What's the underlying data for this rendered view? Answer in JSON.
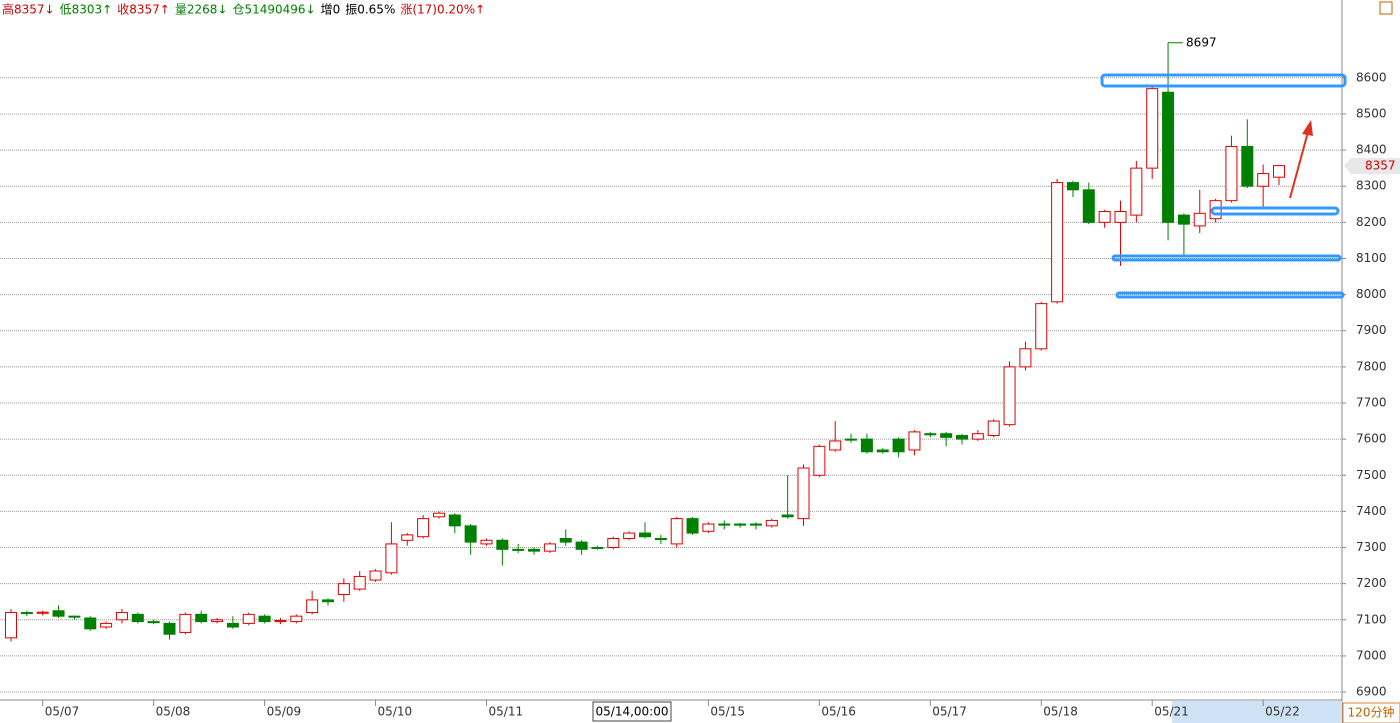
{
  "chart_data": {
    "type": "candlestick",
    "header": [
      {
        "text": "高8357↓",
        "color": "#d00000"
      },
      {
        "text": "低8303↑",
        "color": "#008000"
      },
      {
        "text": "收8357↑",
        "color": "#d00000"
      },
      {
        "text": "量2268↓",
        "color": "#008000"
      },
      {
        "text": "仓51490496↓",
        "color": "#008000"
      },
      {
        "text": "增0",
        "color": "#000000"
      },
      {
        "text": "振0.65%",
        "color": "#000000"
      },
      {
        "text": "涨(17)0.20%↑",
        "color": "#d00000"
      }
    ],
    "period": "120分钟",
    "cursor_label": "05/14,00:00",
    "categories": [
      null,
      null,
      "05/07",
      null,
      null,
      null,
      null,
      null,
      null,
      "05/08",
      null,
      null,
      null,
      null,
      null,
      null,
      "05/09",
      null,
      null,
      null,
      null,
      null,
      null,
      "05/10",
      null,
      null,
      null,
      null,
      null,
      null,
      "05/11",
      null,
      null,
      null,
      null,
      null,
      null,
      null,
      null,
      null,
      null,
      null,
      null,
      null,
      "05/15",
      null,
      null,
      null,
      null,
      null,
      null,
      "05/16",
      null,
      null,
      null,
      null,
      null,
      null,
      "05/17",
      null,
      null,
      null,
      null,
      null,
      null,
      "05/18",
      null,
      null,
      null,
      null,
      null,
      null,
      "05/21",
      null,
      null,
      null,
      null,
      null,
      null,
      "05/22",
      null
    ],
    "open": [
      7050,
      7120,
      7118,
      7125,
      7110,
      7105,
      7080,
      7100,
      7115,
      7095,
      7090,
      7065,
      7115,
      7095,
      7090,
      7090,
      7110,
      7095,
      7095,
      7120,
      7155,
      7170,
      7185,
      7210,
      7230,
      7320,
      7330,
      7385,
      7390,
      7360,
      7310,
      7320,
      7295,
      7295,
      7290,
      7325,
      7315,
      7300,
      7300,
      7325,
      7340,
      7325,
      7310,
      7380,
      7345,
      7365,
      7365,
      7365,
      7360,
      7390,
      7380,
      7500,
      7570,
      7600,
      7600,
      7570,
      7600,
      7570,
      7615,
      7615,
      7610,
      7600,
      7610,
      7640,
      7800,
      7850,
      7980,
      8310,
      8290,
      8200,
      8200,
      8220,
      8350,
      8560,
      8220,
      8190,
      8210,
      8260,
      8410,
      8300,
      8325
    ],
    "close": [
      7120,
      7118,
      7121,
      7110,
      7108,
      7075,
      7090,
      7120,
      7095,
      7092,
      7060,
      7115,
      7095,
      7100,
      7080,
      7115,
      7095,
      7098,
      7110,
      7155,
      7150,
      7200,
      7220,
      7235,
      7310,
      7335,
      7380,
      7395,
      7360,
      7315,
      7320,
      7295,
      7292,
      7290,
      7310,
      7315,
      7295,
      7298,
      7325,
      7340,
      7330,
      7322,
      7380,
      7340,
      7365,
      7362,
      7362,
      7362,
      7375,
      7385,
      7520,
      7580,
      7595,
      7598,
      7565,
      7565,
      7565,
      7620,
      7612,
      7605,
      7600,
      7615,
      7650,
      7800,
      7850,
      7975,
      8310,
      8290,
      8200,
      8230,
      8230,
      8350,
      8570,
      8200,
      8195,
      8225,
      8260,
      8410,
      8300,
      8335,
      8357
    ],
    "high": [
      7130,
      7125,
      7125,
      7140,
      7112,
      7110,
      7095,
      7130,
      7120,
      7100,
      7095,
      7120,
      7125,
      7105,
      7110,
      7120,
      7115,
      7105,
      7115,
      7180,
      7160,
      7215,
      7235,
      7240,
      7370,
      7340,
      7390,
      7400,
      7395,
      7365,
      7325,
      7325,
      7310,
      7300,
      7315,
      7350,
      7320,
      7305,
      7330,
      7345,
      7370,
      7335,
      7385,
      7385,
      7370,
      7375,
      7368,
      7370,
      7380,
      7500,
      7530,
      7585,
      7650,
      7615,
      7615,
      7575,
      7605,
      7625,
      7620,
      7620,
      7615,
      7625,
      7655,
      7815,
      7870,
      7980,
      8320,
      8315,
      8310,
      8235,
      8260,
      8370,
      8575,
      8697,
      8225,
      8290,
      8265,
      8440,
      8485,
      8360,
      8357
    ],
    "low": [
      7040,
      7110,
      7112,
      7105,
      7100,
      7070,
      7075,
      7090,
      7090,
      7088,
      7045,
      7060,
      7090,
      7090,
      7075,
      7085,
      7090,
      7088,
      7090,
      7115,
      7140,
      7150,
      7180,
      7205,
      7225,
      7305,
      7325,
      7380,
      7340,
      7280,
      7305,
      7250,
      7285,
      7280,
      7285,
      7305,
      7280,
      7295,
      7295,
      7320,
      7325,
      7310,
      7300,
      7335,
      7340,
      7350,
      7355,
      7350,
      7355,
      7380,
      7360,
      7495,
      7565,
      7590,
      7560,
      7560,
      7550,
      7555,
      7605,
      7580,
      7585,
      7595,
      7605,
      7635,
      7790,
      7845,
      7975,
      8270,
      8195,
      8185,
      8080,
      8200,
      8320,
      8150,
      8110,
      8170,
      8200,
      8255,
      8295,
      8240,
      8303
    ],
    "up_color": "#e00000",
    "down_color": "#008000",
    "ylim": [
      6878,
      8760
    ],
    "yticks": [
      6900,
      7000,
      7100,
      7200,
      7300,
      7400,
      7500,
      7600,
      7700,
      7800,
      7900,
      8000,
      8100,
      8200,
      8300,
      8400,
      8500,
      8600
    ],
    "grid": true
  }
}
